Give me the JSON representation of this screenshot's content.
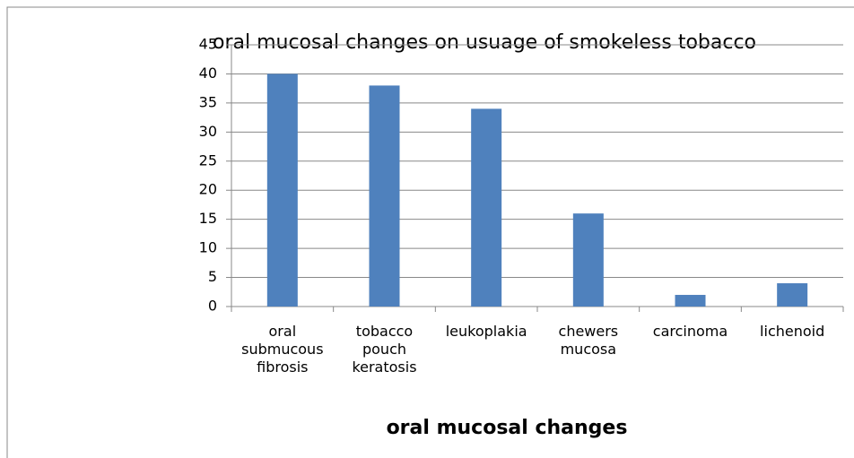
{
  "chart_data": {
    "type": "bar",
    "title": "oral mucosal changes on usuage of smokeless tobacco",
    "xlabel": "oral mucosal changes",
    "categories": [
      "oral submucous fibrosis",
      "tobacco pouch keratosis",
      "leukoplakia",
      "chewers mucosa",
      "carcinoma",
      "lichenoid"
    ],
    "values": [
      40,
      38,
      34,
      16,
      2,
      4
    ],
    "color": "#4f81bd",
    "ylim": [
      0,
      45
    ],
    "yticks": [
      0,
      5,
      10,
      15,
      20,
      25,
      30,
      35,
      40,
      45
    ],
    "grid": true
  }
}
